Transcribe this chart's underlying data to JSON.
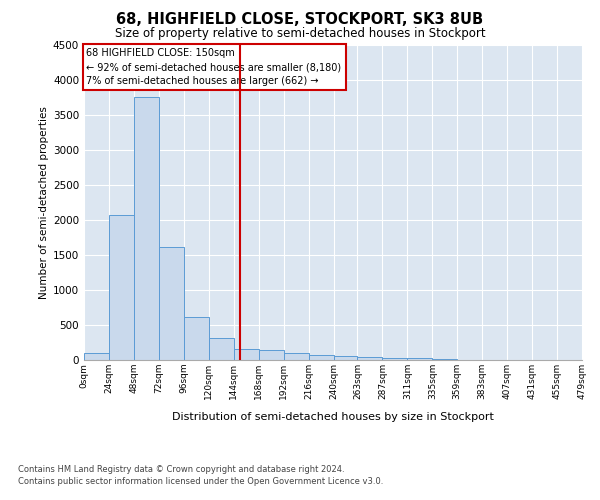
{
  "title_line1": "68, HIGHFIELD CLOSE, STOCKPORT, SK3 8UB",
  "title_line2": "Size of property relative to semi-detached houses in Stockport",
  "xlabel": "Distribution of semi-detached houses by size in Stockport",
  "ylabel": "Number of semi-detached properties",
  "footer_line1": "Contains HM Land Registry data © Crown copyright and database right 2024.",
  "footer_line2": "Contains public sector information licensed under the Open Government Licence v3.0.",
  "annotation_line1": "68 HIGHFIELD CLOSE: 150sqm",
  "annotation_line2": "← 92% of semi-detached houses are smaller (8,180)",
  "annotation_line3": "7% of semi-detached houses are larger (662) →",
  "property_size": 150,
  "bin_edges": [
    0,
    24,
    48,
    72,
    96,
    120,
    144,
    168,
    192,
    216,
    240,
    263,
    287,
    311,
    335,
    359,
    383,
    407,
    431,
    455,
    479
  ],
  "bar_values": [
    100,
    2070,
    3760,
    1620,
    620,
    310,
    155,
    145,
    105,
    65,
    60,
    50,
    35,
    25,
    10,
    5,
    5,
    0,
    5,
    0
  ],
  "bar_color": "#c9d9ec",
  "bar_edge_color": "#5b9bd5",
  "vline_color": "#cc0000",
  "vline_x": 150,
  "ylim": [
    0,
    4500
  ],
  "yticks": [
    0,
    500,
    1000,
    1500,
    2000,
    2500,
    3000,
    3500,
    4000,
    4500
  ],
  "background_color": "#dce6f1",
  "grid_color": "#ffffff",
  "annotation_box_color": "#ffffff",
  "annotation_border_color": "#cc0000",
  "fig_width": 6.0,
  "fig_height": 5.0,
  "dpi": 100
}
